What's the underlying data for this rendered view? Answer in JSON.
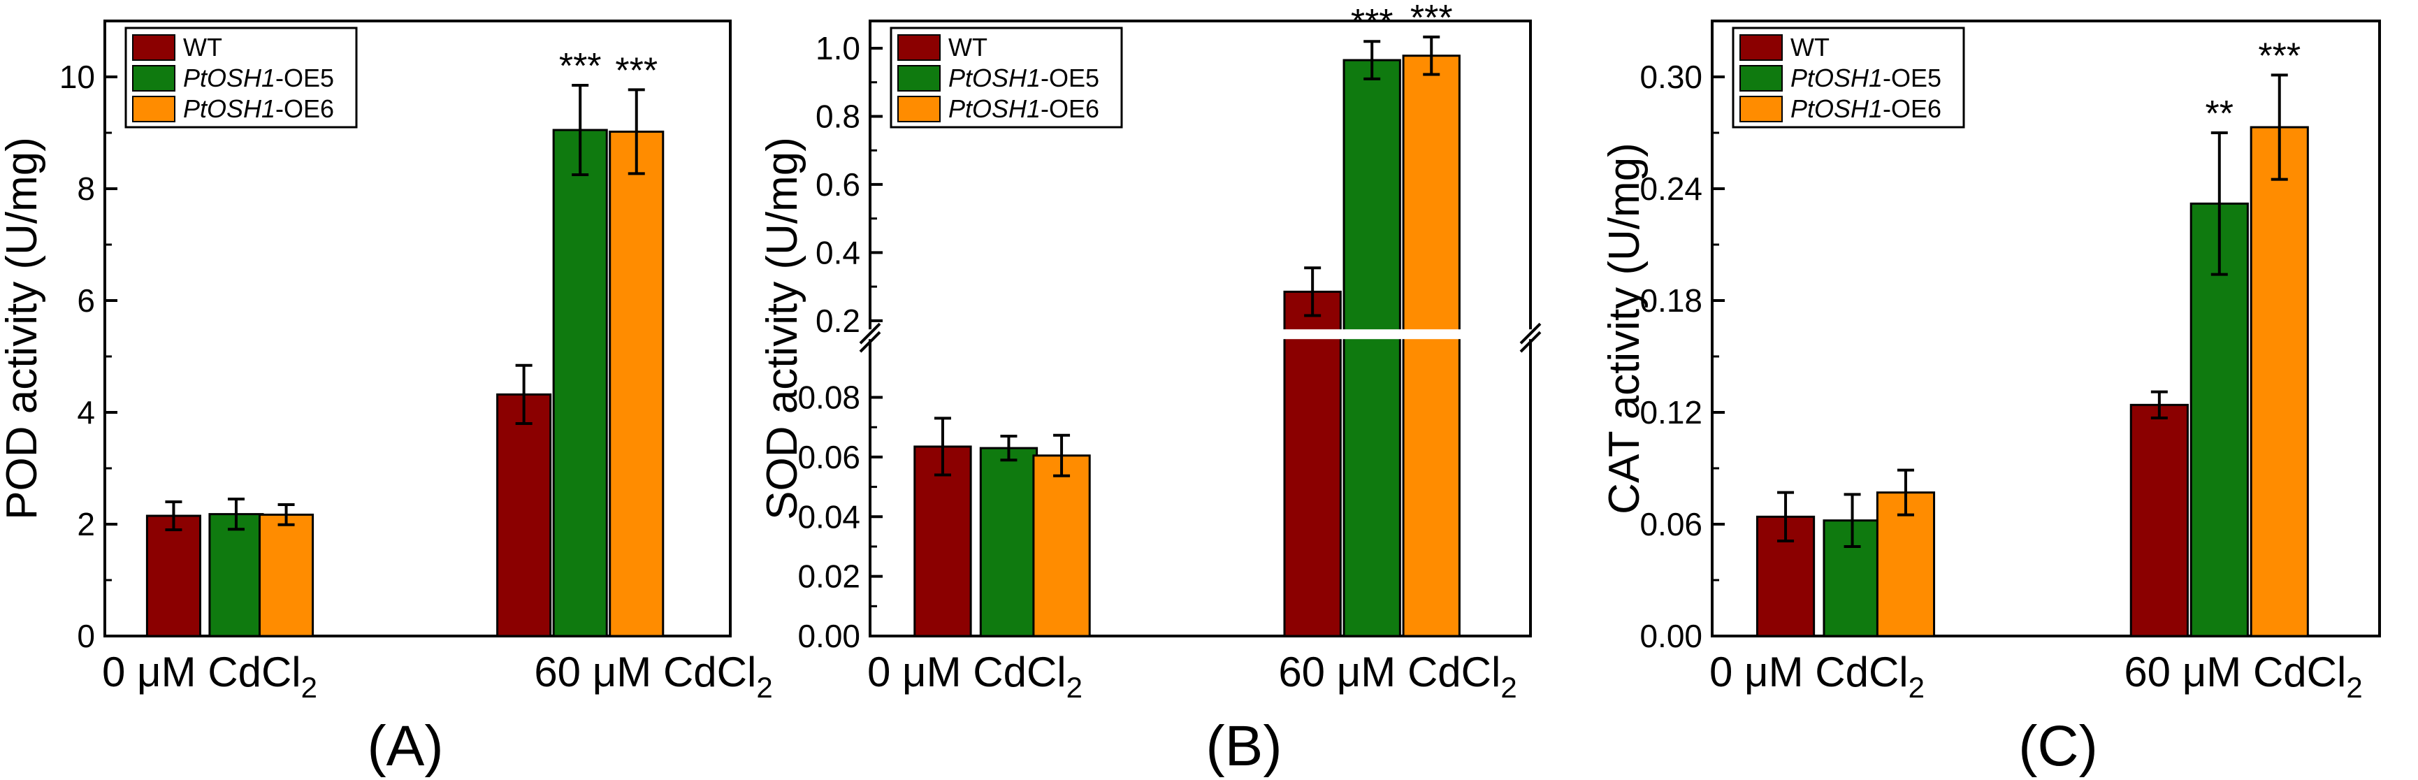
{
  "figure": {
    "colors": {
      "WT": "#8b0000",
      "PtOSH1-OE5": "#0f7a0f",
      "PtOSH1-OE6": "#ff8c00"
    },
    "legend": [
      {
        "key": "WT",
        "label": "WT",
        "italic": ""
      },
      {
        "key": "PtOSH1-OE5",
        "italic": "PtOSH1",
        "label": "-OE5"
      },
      {
        "key": "PtOSH1-OE6",
        "italic": "PtOSH1",
        "label": "-OE6"
      }
    ]
  },
  "chart_data": [
    {
      "type": "bar",
      "panel_label": "(A)",
      "ylabel": "POD activity (U/mg)",
      "categories": [
        {
          "main": "0 μM CdCl",
          "sub": "2"
        },
        {
          "main": "60 μM CdCl",
          "sub": "2"
        }
      ],
      "ylim": [
        0,
        11
      ],
      "yticks": [
        0,
        2,
        4,
        6,
        8,
        10
      ],
      "ytick_labels": [
        "0",
        "2",
        "4",
        "6",
        "8",
        "10"
      ],
      "series": [
        {
          "name": "WT",
          "values": [
            2.15,
            4.32
          ],
          "errors": [
            0.25,
            0.52
          ],
          "sig": [
            "",
            ""
          ]
        },
        {
          "name": "PtOSH1-OE5",
          "values": [
            2.18,
            9.05
          ],
          "errors": [
            0.27,
            0.8
          ],
          "sig": [
            "",
            "***"
          ]
        },
        {
          "name": "PtOSH1-OE6",
          "values": [
            2.17,
            9.02
          ],
          "errors": [
            0.18,
            0.75
          ],
          "sig": [
            "",
            "***"
          ]
        }
      ]
    },
    {
      "type": "bar",
      "panel_label": "(B)",
      "ylabel": "SOD activity (U/mg)",
      "categories": [
        {
          "main": "0 μM CdCl",
          "sub": "2"
        },
        {
          "main": "60 μM CdCl",
          "sub": "2"
        }
      ],
      "ylim": [
        0,
        1.08
      ],
      "axis_break": [
        0.1,
        0.15
      ],
      "yticks_lower": [
        0.0,
        0.02,
        0.04,
        0.06,
        0.08
      ],
      "ytick_labels_lower": [
        "0.00",
        "0.02",
        "0.04",
        "0.06",
        "0.08"
      ],
      "yticks_upper": [
        0.2,
        0.4,
        0.6,
        0.8,
        1.0
      ],
      "ytick_labels_upper": [
        "0.2",
        "0.4",
        "0.6",
        "0.8",
        "1.0"
      ],
      "series": [
        {
          "name": "WT",
          "values": [
            0.0635,
            0.285
          ],
          "errors": [
            0.0095,
            0.07
          ],
          "sig": [
            "",
            ""
          ]
        },
        {
          "name": "PtOSH1-OE5",
          "values": [
            0.063,
            0.965
          ],
          "errors": [
            0.004,
            0.055
          ],
          "sig": [
            "",
            "***"
          ]
        },
        {
          "name": "PtOSH1-OE6",
          "values": [
            0.0605,
            0.978
          ],
          "errors": [
            0.0068,
            0.055
          ],
          "sig": [
            "",
            "***"
          ]
        }
      ]
    },
    {
      "type": "bar",
      "panel_label": "(C)",
      "ylabel": "CAT activity (U/mg)",
      "categories": [
        {
          "main": "0 μM CdCl",
          "sub": "2"
        },
        {
          "main": "60 μM CdCl",
          "sub": "2"
        }
      ],
      "ylim": [
        0,
        0.33
      ],
      "yticks": [
        0,
        0.06,
        0.12,
        0.18,
        0.24,
        0.3
      ],
      "ytick_labels": [
        "0.00",
        "0.06",
        "0.12",
        "0.18",
        "0.24",
        "0.30"
      ],
      "series": [
        {
          "name": "WT",
          "values": [
            0.064,
            0.124
          ],
          "errors": [
            0.013,
            0.007
          ],
          "sig": [
            "",
            ""
          ]
        },
        {
          "name": "PtOSH1-OE5",
          "values": [
            0.062,
            0.232
          ],
          "errors": [
            0.014,
            0.038
          ],
          "sig": [
            "",
            "**"
          ]
        },
        {
          "name": "PtOSH1-OE6",
          "values": [
            0.077,
            0.273
          ],
          "errors": [
            0.012,
            0.028
          ],
          "sig": [
            "",
            "***"
          ]
        }
      ]
    }
  ]
}
